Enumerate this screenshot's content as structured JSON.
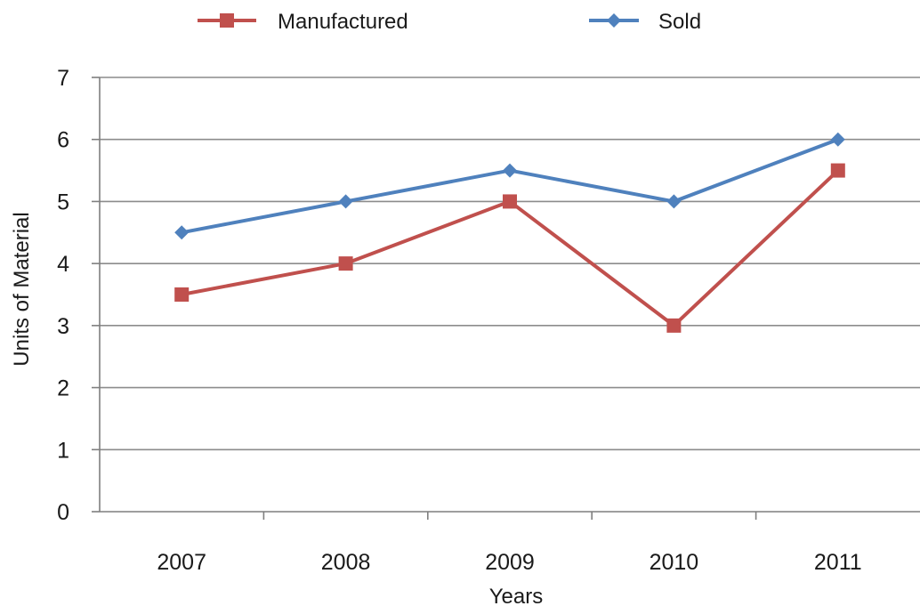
{
  "chart_data": {
    "type": "line",
    "categories": [
      "2007",
      "2008",
      "2009",
      "2010",
      "2011"
    ],
    "series": [
      {
        "name": "Manufactured",
        "values": [
          3.5,
          4,
          5,
          3,
          5.5
        ],
        "color": "#c0504d",
        "marker": "square"
      },
      {
        "name": "Sold",
        "values": [
          4.5,
          5,
          5.5,
          5,
          6
        ],
        "color": "#4f81bd",
        "marker": "diamond"
      }
    ],
    "title": "",
    "xlabel": "Years",
    "ylabel": "Units of Material",
    "ylim": [
      0,
      7
    ],
    "yticks": [
      "0",
      "1",
      "2",
      "3",
      "4",
      "5",
      "6",
      "7"
    ],
    "grid": true,
    "legend_position": "top"
  }
}
